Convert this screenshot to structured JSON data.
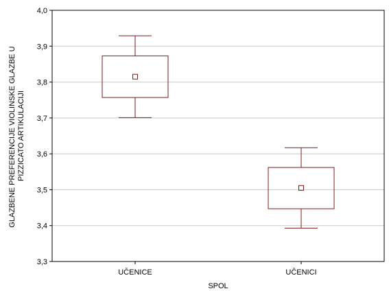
{
  "chart_data": {
    "type": "box",
    "xlabel": "SPOL",
    "ylabel": [
      "GLAZBENE PREFERENCIJE VIOLINSKE GLAZBE U",
      "PIZZICATO ARTIKULACIJI"
    ],
    "ylim": [
      3.3,
      4.0
    ],
    "yticks": [
      "3,3",
      "3,4",
      "3,5",
      "3,6",
      "3,7",
      "3,8",
      "3,9",
      "4,0"
    ],
    "grid": true,
    "categories": [
      "UČENICE",
      "UČENICI"
    ],
    "series": [
      {
        "category": "UČENICE",
        "mean": 3.815,
        "box_low": 3.757,
        "box_high": 3.873,
        "whisker_low": 3.701,
        "whisker_high": 3.929
      },
      {
        "category": "UČENICI",
        "mean": 3.505,
        "box_low": 3.447,
        "box_high": 3.562,
        "whisker_low": 3.393,
        "whisker_high": 3.617
      }
    ],
    "colors": {
      "box": "#7a1c1c",
      "grid": "#c8c8c8",
      "axis": "#000000"
    }
  }
}
